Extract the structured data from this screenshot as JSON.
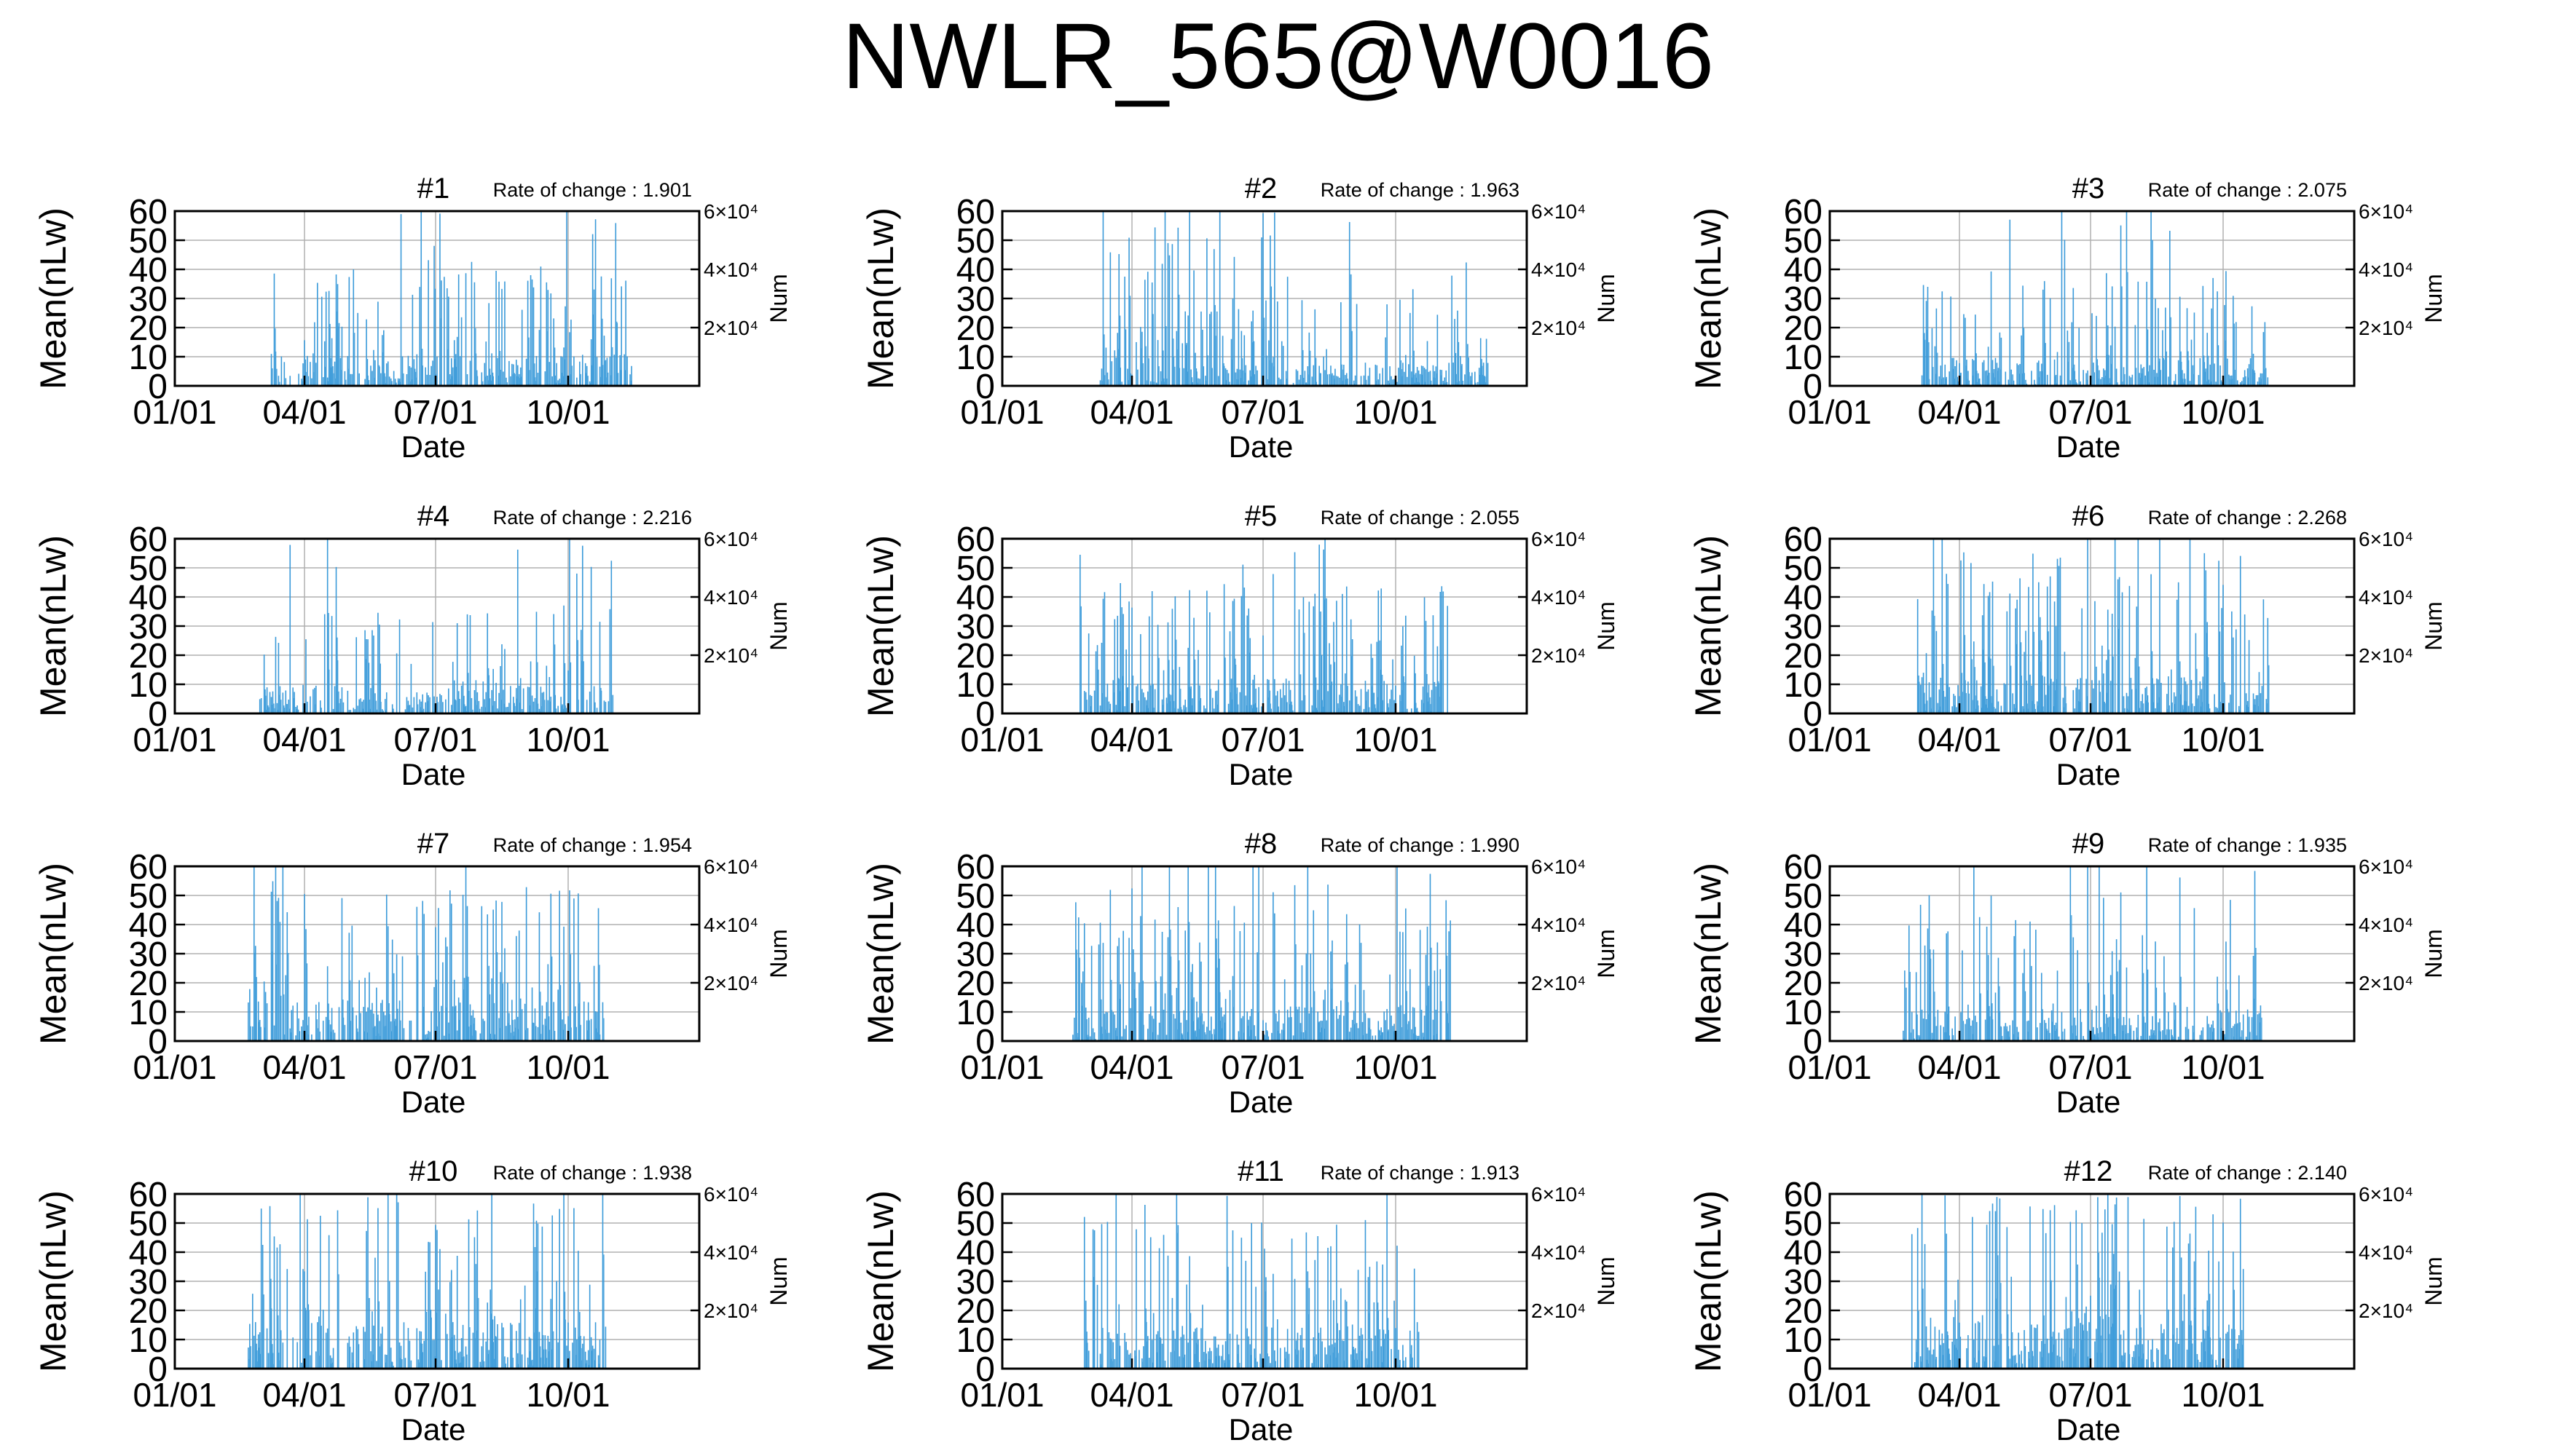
{
  "title": "NWLR_565@W0016",
  "chart_data": [
    {
      "type": "bar",
      "panel": "#1",
      "rate_label": "Rate of change : 1.901",
      "xlabel": "Date",
      "ylabel": "Mean(nLw)",
      "y2label": "Num",
      "x_tick_labels": [
        "01/01",
        "04/01",
        "07/01",
        "10/01"
      ],
      "y_tick_labels": [
        "0",
        "10",
        "20",
        "30",
        "40",
        "50",
        "60"
      ],
      "y2_tick_labels": [
        "2×10⁴",
        "4×10⁴",
        "6×10⁴"
      ],
      "ylim": [
        0,
        60
      ],
      "y2lim": [
        0,
        60000
      ],
      "x_range_days": [
        1,
        365
      ],
      "grid": true,
      "data_start_day": 68,
      "data_end_day": 318,
      "peak_max": 60,
      "peak_level": 14,
      "color": "#3a9ad9",
      "seed": 101
    },
    {
      "type": "bar",
      "panel": "#2",
      "rate_label": "Rate of change : 1.963",
      "xlabel": "Date",
      "ylabel": "Mean(nLw)",
      "y2label": "Num",
      "x_tick_labels": [
        "01/01",
        "04/01",
        "07/01",
        "10/01"
      ],
      "y_tick_labels": [
        "0",
        "10",
        "20",
        "30",
        "40",
        "50",
        "60"
      ],
      "y2_tick_labels": [
        "2×10⁴",
        "4×10⁴",
        "6×10⁴"
      ],
      "ylim": [
        0,
        60
      ],
      "y2lim": [
        0,
        60000
      ],
      "x_range_days": [
        1,
        365
      ],
      "grid": true,
      "data_start_day": 69,
      "data_end_day": 338,
      "peak_max": 60,
      "peak_level": 10,
      "color": "#3a9ad9",
      "seed": 202
    },
    {
      "type": "bar",
      "panel": "#3",
      "rate_label": "Rate of change : 2.075",
      "xlabel": "Date",
      "ylabel": "Mean(nLw)",
      "y2label": "Num",
      "x_tick_labels": [
        "01/01",
        "04/01",
        "07/01",
        "10/01"
      ],
      "y_tick_labels": [
        "0",
        "10",
        "20",
        "30",
        "40",
        "50",
        "60"
      ],
      "y2_tick_labels": [
        "2×10⁴",
        "4×10⁴",
        "6×10⁴"
      ],
      "ylim": [
        0,
        60
      ],
      "y2lim": [
        0,
        60000
      ],
      "x_range_days": [
        1,
        365
      ],
      "grid": true,
      "data_start_day": 65,
      "data_end_day": 305,
      "peak_max": 60,
      "peak_level": 12,
      "color": "#3a9ad9",
      "seed": 303
    },
    {
      "type": "bar",
      "panel": "#4",
      "rate_label": "Rate of change : 2.216",
      "xlabel": "Date",
      "ylabel": "Mean(nLw)",
      "y2label": "Num",
      "x_tick_labels": [
        "01/01",
        "04/01",
        "07/01",
        "10/01"
      ],
      "y_tick_labels": [
        "0",
        "10",
        "20",
        "30",
        "40",
        "50",
        "60"
      ],
      "y2_tick_labels": [
        "2×10⁴",
        "4×10⁴",
        "6×10⁴"
      ],
      "ylim": [
        0,
        60
      ],
      "y2lim": [
        0,
        60000
      ],
      "x_range_days": [
        1,
        365
      ],
      "grid": true,
      "data_start_day": 60,
      "data_end_day": 305,
      "peak_max": 60,
      "peak_level": 12,
      "color": "#3a9ad9",
      "seed": 404
    },
    {
      "type": "bar",
      "panel": "#5",
      "rate_label": "Rate of change : 2.055",
      "xlabel": "Date",
      "ylabel": "Mean(nLw)",
      "y2label": "Num",
      "x_tick_labels": [
        "01/01",
        "04/01",
        "07/01",
        "10/01"
      ],
      "y_tick_labels": [
        "0",
        "10",
        "20",
        "30",
        "40",
        "50",
        "60"
      ],
      "y2_tick_labels": [
        "2×10⁴",
        "4×10⁴",
        "6×10⁴"
      ],
      "ylim": [
        0,
        60
      ],
      "y2lim": [
        0,
        60000
      ],
      "x_range_days": [
        1,
        365
      ],
      "grid": true,
      "data_start_day": 55,
      "data_end_day": 312,
      "peak_max": 60,
      "peak_level": 15,
      "color": "#3a9ad9",
      "seed": 505
    },
    {
      "type": "bar",
      "panel": "#6",
      "rate_label": "Rate of change : 2.268",
      "xlabel": "Date",
      "ylabel": "Mean(nLw)",
      "y2label": "Num",
      "x_tick_labels": [
        "01/01",
        "04/01",
        "07/01",
        "10/01"
      ],
      "y_tick_labels": [
        "0",
        "10",
        "20",
        "30",
        "40",
        "50",
        "60"
      ],
      "y2_tick_labels": [
        "2×10⁴",
        "4×10⁴",
        "6×10⁴"
      ],
      "ylim": [
        0,
        60
      ],
      "y2lim": [
        0,
        60000
      ],
      "x_range_days": [
        1,
        365
      ],
      "grid": true,
      "data_start_day": 62,
      "data_end_day": 305,
      "peak_max": 60,
      "peak_level": 16,
      "color": "#3a9ad9",
      "seed": 606
    },
    {
      "type": "bar",
      "panel": "#7",
      "rate_label": "Rate of change : 1.954",
      "xlabel": "Date",
      "ylabel": "Mean(nLw)",
      "y2label": "Num",
      "x_tick_labels": [
        "01/01",
        "04/01",
        "07/01",
        "10/01"
      ],
      "y_tick_labels": [
        "0",
        "10",
        "20",
        "30",
        "40",
        "50",
        "60"
      ],
      "y2_tick_labels": [
        "2×10⁴",
        "4×10⁴",
        "6×10⁴"
      ],
      "ylim": [
        0,
        60
      ],
      "y2lim": [
        0,
        60000
      ],
      "x_range_days": [
        1,
        365
      ],
      "grid": true,
      "data_start_day": 52,
      "data_end_day": 298,
      "peak_max": 60,
      "peak_level": 18,
      "color": "#3a9ad9",
      "seed": 707
    },
    {
      "type": "bar",
      "panel": "#8",
      "rate_label": "Rate of change : 1.990",
      "xlabel": "Date",
      "ylabel": "Mean(nLw)",
      "y2label": "Num",
      "x_tick_labels": [
        "01/01",
        "04/01",
        "07/01",
        "10/01"
      ],
      "y_tick_labels": [
        "0",
        "10",
        "20",
        "30",
        "40",
        "50",
        "60"
      ],
      "y2_tick_labels": [
        "2×10⁴",
        "4×10⁴",
        "6×10⁴"
      ],
      "ylim": [
        0,
        60
      ],
      "y2lim": [
        0,
        60000
      ],
      "x_range_days": [
        1,
        365
      ],
      "grid": true,
      "data_start_day": 50,
      "data_end_day": 312,
      "peak_max": 60,
      "peak_level": 15,
      "color": "#3a9ad9",
      "seed": 808
    },
    {
      "type": "bar",
      "panel": "#9",
      "rate_label": "Rate of change : 1.935",
      "xlabel": "Date",
      "ylabel": "Mean(nLw)",
      "y2label": "Num",
      "x_tick_labels": [
        "01/01",
        "04/01",
        "07/01",
        "10/01"
      ],
      "y_tick_labels": [
        "0",
        "10",
        "20",
        "30",
        "40",
        "50",
        "60"
      ],
      "y2_tick_labels": [
        "2×10⁴",
        "4×10⁴",
        "6×10⁴"
      ],
      "ylim": [
        0,
        60
      ],
      "y2lim": [
        0,
        60000
      ],
      "x_range_days": [
        1,
        365
      ],
      "grid": true,
      "data_start_day": 52,
      "data_end_day": 300,
      "peak_max": 60,
      "peak_level": 14,
      "color": "#3a9ad9",
      "seed": 909
    },
    {
      "type": "bar",
      "panel": "#10",
      "rate_label": "Rate of change : 1.938",
      "xlabel": "Date",
      "ylabel": "Mean(nLw)",
      "y2label": "Num",
      "x_tick_labels": [
        "01/01",
        "04/01",
        "07/01",
        "10/01"
      ],
      "y_tick_labels": [
        "0",
        "10",
        "20",
        "30",
        "40",
        "50",
        "60"
      ],
      "y2_tick_labels": [
        "2×10⁴",
        "4×10⁴",
        "6×10⁴"
      ],
      "ylim": [
        0,
        60
      ],
      "y2lim": [
        0,
        60000
      ],
      "x_range_days": [
        1,
        365
      ],
      "grid": true,
      "data_start_day": 52,
      "data_end_day": 300,
      "peak_max": 60,
      "peak_level": 20,
      "color": "#3a9ad9",
      "seed": 1010
    },
    {
      "type": "bar",
      "panel": "#11",
      "rate_label": "Rate of change : 1.913",
      "xlabel": "Date",
      "ylabel": "Mean(nLw)",
      "y2label": "Num",
      "x_tick_labels": [
        "01/01",
        "04/01",
        "07/01",
        "10/01"
      ],
      "y_tick_labels": [
        "0",
        "10",
        "20",
        "30",
        "40",
        "50",
        "60"
      ],
      "y2_tick_labels": [
        "2×10⁴",
        "4×10⁴",
        "6×10⁴"
      ],
      "ylim": [
        0,
        60
      ],
      "y2lim": [
        0,
        60000
      ],
      "x_range_days": [
        1,
        365
      ],
      "grid": true,
      "data_start_day": 58,
      "data_end_day": 290,
      "peak_max": 60,
      "peak_level": 18,
      "color": "#3a9ad9",
      "seed": 1111
    },
    {
      "type": "bar",
      "panel": "#12",
      "rate_label": "Rate of change : 2.140",
      "xlabel": "Date",
      "ylabel": "Mean(nLw)",
      "y2label": "Num",
      "x_tick_labels": [
        "01/01",
        "04/01",
        "07/01",
        "10/01"
      ],
      "y_tick_labels": [
        "0",
        "10",
        "20",
        "30",
        "40",
        "50",
        "60"
      ],
      "y2_tick_labels": [
        "2×10⁴",
        "4×10⁴",
        "6×10⁴"
      ],
      "ylim": [
        0,
        60
      ],
      "y2lim": [
        0,
        60000
      ],
      "x_range_days": [
        1,
        365
      ],
      "grid": true,
      "data_start_day": 58,
      "data_end_day": 288,
      "peak_max": 60,
      "peak_level": 20,
      "color": "#3a9ad9",
      "seed": 1212
    }
  ]
}
